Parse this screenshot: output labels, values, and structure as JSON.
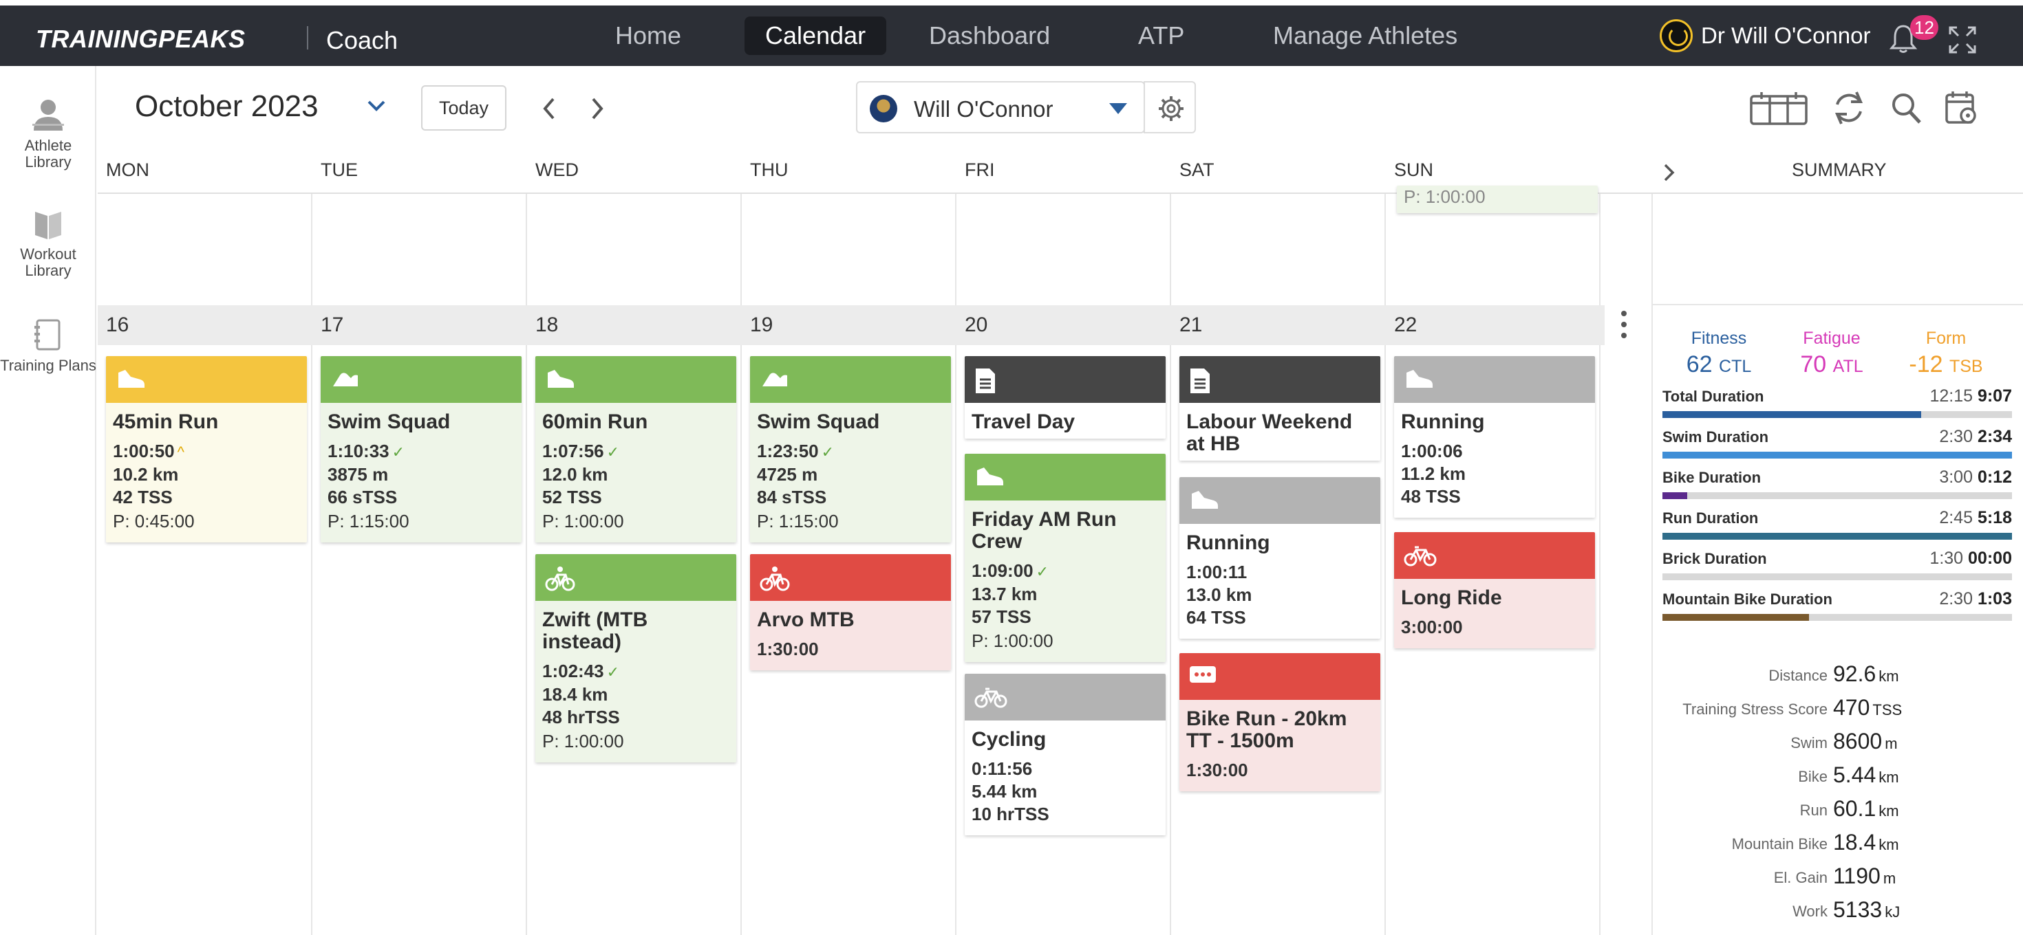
{
  "nav": {
    "logo": "TRAININGPEAKS",
    "app": "Coach",
    "tabs": [
      "Home",
      "Calendar",
      "Dashboard",
      "ATP",
      "Manage Athletes"
    ],
    "active_tab": "Calendar",
    "user": "Dr Will O'Connor",
    "notifications": "12"
  },
  "rail": {
    "athlete_library": "Athlete Library",
    "workout_library": "Workout Library",
    "training_plans": "Training Plans"
  },
  "toolbar": {
    "month": "October 2023",
    "today": "Today",
    "athlete": "Will O'Connor"
  },
  "days": [
    "MON",
    "TUE",
    "WED",
    "THU",
    "FRI",
    "SAT",
    "SUN"
  ],
  "dates": [
    "16",
    "17",
    "18",
    "19",
    "20",
    "21",
    "22"
  ],
  "prev_week_sun_plan": "P: 1:00:00",
  "cards": {
    "mon_run": {
      "title": "45min Run",
      "duration": "1:00:50",
      "distance": "10.2 km",
      "tss": "42 TSS",
      "plan": "P: 0:45:00"
    },
    "tue_swim": {
      "title": "Swim Squad",
      "duration": "1:10:33",
      "distance": "3875 m",
      "tss": "66 sTSS",
      "plan": "P: 1:15:00"
    },
    "wed_run": {
      "title": "60min Run",
      "duration": "1:07:56",
      "distance": "12.0 km",
      "tss": "52 TSS",
      "plan": "P: 1:00:00"
    },
    "wed_zwift": {
      "title": "Zwift (MTB instead)",
      "duration": "1:02:43",
      "distance": "18.4 km",
      "tss": "48 hrTSS",
      "plan": "P: 1:00:00"
    },
    "thu_swim": {
      "title": "Swim Squad",
      "duration": "1:23:50",
      "distance": "4725 m",
      "tss": "84 sTSS",
      "plan": "P: 1:15:00"
    },
    "thu_mtb": {
      "title": "Arvo MTB",
      "duration": "1:30:00"
    },
    "fri_travel": {
      "title": "Travel Day"
    },
    "fri_run": {
      "title": "Friday AM Run Crew",
      "duration": "1:09:00",
      "distance": "13.7 km",
      "tss": "57 TSS",
      "plan": "P: 1:00:00"
    },
    "fri_cycling": {
      "title": "Cycling",
      "duration": "0:11:56",
      "distance": "5.44 km",
      "tss": "10 hrTSS"
    },
    "sat_note": {
      "title": "Labour Weekend at HB"
    },
    "sat_run": {
      "title": "Running",
      "duration": "1:00:11",
      "distance": "13.0 km",
      "tss": "64 TSS"
    },
    "sat_brick": {
      "title": "Bike Run - 20km TT - 1500m",
      "duration": "1:30:00"
    },
    "sun_run": {
      "title": "Running",
      "duration": "1:00:06",
      "distance": "11.2 km",
      "tss": "48 TSS"
    },
    "sun_ride": {
      "title": "Long Ride",
      "duration": "3:00:00"
    }
  },
  "summary": {
    "label": "SUMMARY",
    "fitness": {
      "name": "Fitness",
      "value": "62",
      "unit": "CTL",
      "color": "#2a5f9e"
    },
    "fatigue": {
      "name": "Fatigue",
      "value": "70",
      "unit": "ATL",
      "color": "#d63ab8"
    },
    "form": {
      "name": "Form",
      "value": "-12",
      "unit": "TSB",
      "color": "#f0a02c"
    },
    "durations": [
      {
        "label": "Total Duration",
        "planned": "12:15",
        "actual": "9:07",
        "fraction": 0.74,
        "color": "#2a5f9e"
      },
      {
        "label": "Swim Duration",
        "planned": "2:30",
        "actual": "2:34",
        "fraction": 1.0,
        "color": "#3f8ed6"
      },
      {
        "label": "Bike Duration",
        "planned": "3:00",
        "actual": "0:12",
        "fraction": 0.07,
        "color": "#5b2a8c"
      },
      {
        "label": "Run Duration",
        "planned": "2:45",
        "actual": "5:18",
        "fraction": 1.0,
        "color": "#2f6d8a"
      },
      {
        "label": "Brick Duration",
        "planned": "1:30",
        "actual": "00:00",
        "fraction": 0.0,
        "color": "#444444"
      },
      {
        "label": "Mountain Bike Duration",
        "planned": "2:30",
        "actual": "1:03",
        "fraction": 0.42,
        "color": "#7a5a2e"
      }
    ],
    "stats": [
      {
        "label": "Distance",
        "value": "92.6",
        "unit": "km"
      },
      {
        "label": "Training Stress Score",
        "value": "470",
        "unit": "TSS"
      },
      {
        "label": "Swim",
        "value": "8600",
        "unit": "m"
      },
      {
        "label": "Bike",
        "value": "5.44",
        "unit": "km"
      },
      {
        "label": "Run",
        "value": "60.1",
        "unit": "km"
      },
      {
        "label": "Mountain Bike",
        "value": "18.4",
        "unit": "km"
      },
      {
        "label": "El. Gain",
        "value": "1190",
        "unit": "m"
      },
      {
        "label": "Work",
        "value": "5133",
        "unit": "kJ"
      }
    ]
  }
}
